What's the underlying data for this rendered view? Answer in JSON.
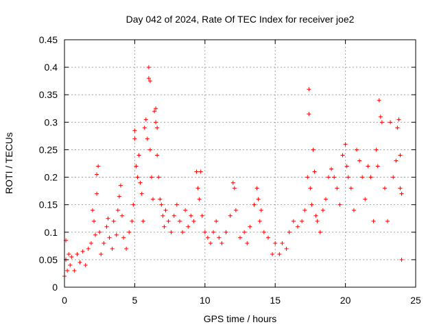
{
  "chart_data": {
    "type": "scatter",
    "title": "Day 042 of 2024, Rate Of TEC Index for receiver joe2",
    "xlabel": "GPS time / hours",
    "ylabel": "ROTI / TECUs",
    "xlim": [
      0,
      25
    ],
    "ylim": [
      0,
      0.45
    ],
    "xticks": [
      0,
      5,
      10,
      15,
      20,
      25
    ],
    "xtick_labels": [
      "0",
      "5",
      "10",
      "15",
      "20",
      "25"
    ],
    "yticks": [
      0,
      0.05,
      0.1,
      0.15,
      0.2,
      0.25,
      0.3,
      0.35,
      0.4,
      0.45
    ],
    "ytick_labels": [
      "0",
      "0.05",
      "0.1",
      "0.15",
      "0.2",
      "0.25",
      "0.3",
      "0.35",
      "0.4",
      "0.45"
    ],
    "grid": true,
    "marker": "plus",
    "color": "#ff0000",
    "series": [
      {
        "points": [
          [
            0.0,
            0.02
          ],
          [
            0.1,
            0.05
          ],
          [
            0.1,
            0.085
          ],
          [
            0.2,
            0.03
          ],
          [
            0.3,
            0.06
          ],
          [
            0.4,
            0.04
          ],
          [
            0.5,
            0.055
          ],
          [
            0.7,
            0.03
          ],
          [
            0.9,
            0.06
          ],
          [
            1.1,
            0.045
          ],
          [
            1.3,
            0.065
          ],
          [
            1.5,
            0.04
          ],
          [
            1.7,
            0.07
          ],
          [
            1.9,
            0.08
          ],
          [
            2.0,
            0.14
          ],
          [
            2.1,
            0.12
          ],
          [
            2.2,
            0.095
          ],
          [
            2.3,
            0.17
          ],
          [
            2.3,
            0.205
          ],
          [
            2.4,
            0.22
          ],
          [
            2.5,
            0.1
          ],
          [
            2.6,
            0.06
          ],
          [
            2.8,
            0.08
          ],
          [
            3.0,
            0.11
          ],
          [
            3.1,
            0.125
          ],
          [
            3.2,
            0.09
          ],
          [
            3.4,
            0.07
          ],
          [
            3.5,
            0.12
          ],
          [
            3.7,
            0.095
          ],
          [
            3.8,
            0.14
          ],
          [
            3.9,
            0.165
          ],
          [
            4.0,
            0.185
          ],
          [
            4.1,
            0.13
          ],
          [
            4.2,
            0.09
          ],
          [
            4.4,
            0.07
          ],
          [
            4.6,
            0.1
          ],
          [
            4.8,
            0.12
          ],
          [
            4.9,
            0.15
          ],
          [
            5.0,
            0.27
          ],
          [
            5.0,
            0.285
          ],
          [
            5.1,
            0.22
          ],
          [
            5.2,
            0.2
          ],
          [
            5.3,
            0.24
          ],
          [
            5.4,
            0.19
          ],
          [
            5.5,
            0.17
          ],
          [
            5.6,
            0.12
          ],
          [
            5.7,
            0.29
          ],
          [
            5.8,
            0.305
          ],
          [
            5.9,
            0.27
          ],
          [
            6.0,
            0.38
          ],
          [
            6.0,
            0.4
          ],
          [
            6.1,
            0.375
          ],
          [
            6.1,
            0.25
          ],
          [
            6.2,
            0.2
          ],
          [
            6.3,
            0.16
          ],
          [
            6.4,
            0.32
          ],
          [
            6.5,
            0.325
          ],
          [
            6.5,
            0.3
          ],
          [
            6.6,
            0.29
          ],
          [
            6.6,
            0.24
          ],
          [
            6.7,
            0.2
          ],
          [
            6.8,
            0.16
          ],
          [
            6.9,
            0.15
          ],
          [
            7.0,
            0.13
          ],
          [
            7.1,
            0.11
          ],
          [
            7.2,
            0.14
          ],
          [
            7.4,
            0.12
          ],
          [
            7.6,
            0.1
          ],
          [
            7.8,
            0.13
          ],
          [
            8.0,
            0.15
          ],
          [
            8.2,
            0.12
          ],
          [
            8.4,
            0.1
          ],
          [
            8.6,
            0.14
          ],
          [
            8.8,
            0.11
          ],
          [
            9.0,
            0.13
          ],
          [
            9.2,
            0.12
          ],
          [
            9.4,
            0.21
          ],
          [
            9.5,
            0.18
          ],
          [
            9.6,
            0.16
          ],
          [
            9.7,
            0.21
          ],
          [
            9.8,
            0.13
          ],
          [
            10.0,
            0.1
          ],
          [
            10.2,
            0.09
          ],
          [
            10.4,
            0.08
          ],
          [
            10.6,
            0.1
          ],
          [
            10.8,
            0.12
          ],
          [
            11.0,
            0.09
          ],
          [
            11.2,
            0.08
          ],
          [
            11.5,
            0.1
          ],
          [
            11.8,
            0.13
          ],
          [
            12.0,
            0.19
          ],
          [
            12.1,
            0.18
          ],
          [
            12.2,
            0.14
          ],
          [
            12.5,
            0.09
          ],
          [
            12.8,
            0.1
          ],
          [
            13.0,
            0.08
          ],
          [
            13.2,
            0.11
          ],
          [
            13.5,
            0.15
          ],
          [
            13.7,
            0.18
          ],
          [
            13.8,
            0.16
          ],
          [
            13.9,
            0.12
          ],
          [
            14.0,
            0.14
          ],
          [
            14.2,
            0.1
          ],
          [
            14.5,
            0.09
          ],
          [
            14.8,
            0.06
          ],
          [
            15.0,
            0.08
          ],
          [
            15.3,
            0.06
          ],
          [
            15.5,
            0.08
          ],
          [
            15.8,
            0.07
          ],
          [
            16.0,
            0.1
          ],
          [
            16.3,
            0.12
          ],
          [
            16.6,
            0.11
          ],
          [
            16.9,
            0.12
          ],
          [
            17.1,
            0.14
          ],
          [
            17.3,
            0.2
          ],
          [
            17.4,
            0.36
          ],
          [
            17.4,
            0.315
          ],
          [
            17.5,
            0.18
          ],
          [
            17.6,
            0.15
          ],
          [
            17.7,
            0.25
          ],
          [
            17.8,
            0.21
          ],
          [
            17.9,
            0.13
          ],
          [
            18.0,
            0.12
          ],
          [
            18.2,
            0.1
          ],
          [
            18.4,
            0.14
          ],
          [
            18.6,
            0.16
          ],
          [
            18.8,
            0.2
          ],
          [
            19.0,
            0.215
          ],
          [
            19.2,
            0.2
          ],
          [
            19.4,
            0.18
          ],
          [
            19.6,
            0.15
          ],
          [
            19.8,
            0.24
          ],
          [
            20.0,
            0.26
          ],
          [
            20.1,
            0.22
          ],
          [
            20.2,
            0.2
          ],
          [
            20.4,
            0.18
          ],
          [
            20.6,
            0.14
          ],
          [
            20.8,
            0.25
          ],
          [
            21.0,
            0.23
          ],
          [
            21.2,
            0.2
          ],
          [
            21.4,
            0.16
          ],
          [
            21.6,
            0.22
          ],
          [
            21.8,
            0.2
          ],
          [
            22.0,
            0.12
          ],
          [
            22.2,
            0.25
          ],
          [
            22.3,
            0.22
          ],
          [
            22.4,
            0.34
          ],
          [
            22.5,
            0.31
          ],
          [
            22.6,
            0.3
          ],
          [
            22.8,
            0.18
          ],
          [
            23.0,
            0.12
          ],
          [
            23.2,
            0.3
          ],
          [
            23.4,
            0.2
          ],
          [
            23.6,
            0.23
          ],
          [
            23.7,
            0.29
          ],
          [
            23.8,
            0.305
          ],
          [
            23.9,
            0.24
          ],
          [
            23.9,
            0.18
          ],
          [
            24.0,
            0.17
          ],
          [
            24.0,
            0.05
          ]
        ]
      }
    ]
  }
}
